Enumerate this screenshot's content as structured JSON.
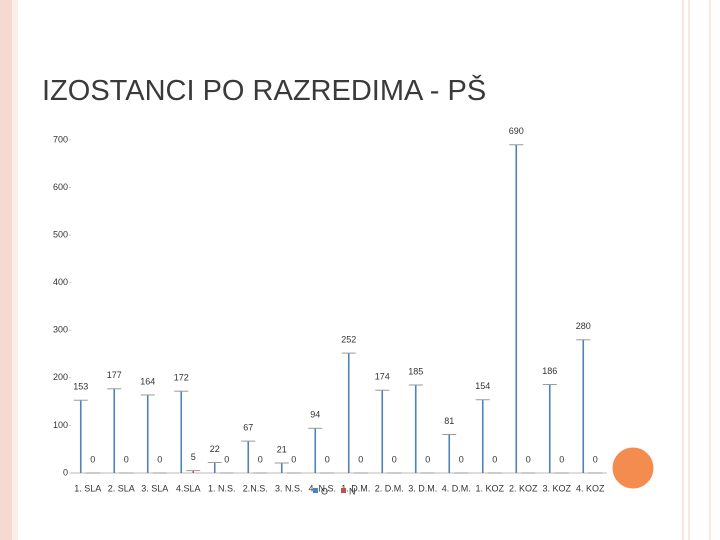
{
  "chart_data": {
    "type": "bar",
    "title": "IZOSTANCI PO RAZREDIMA - PŠ",
    "categories": [
      "1. SLA",
      "2. SLA",
      "3. SLA",
      "4.SLA",
      "1. N.S.",
      "2.N.S.",
      "3. N.S.",
      "4. N.S.",
      "1. D.M.",
      "2. D.M.",
      "3. D.M.",
      "4. D.M.",
      "1. KOZ",
      "2. KOZ",
      "3. KOZ",
      "4. KOZ"
    ],
    "series": [
      {
        "name": "O",
        "color": "#4f81bd",
        "values": [
          153,
          177,
          164,
          172,
          22,
          67,
          21,
          94,
          252,
          174,
          185,
          81,
          154,
          690,
          186,
          280
        ]
      },
      {
        "name": "N",
        "color": "#c0504d",
        "values": [
          0,
          0,
          0,
          5,
          0,
          0,
          0,
          0,
          0,
          0,
          0,
          0,
          0,
          0,
          0,
          0
        ]
      }
    ],
    "ylim": [
      0,
      700
    ],
    "yticks": [
      0,
      100,
      200,
      300,
      400,
      500,
      600,
      700
    ],
    "grid": false
  }
}
